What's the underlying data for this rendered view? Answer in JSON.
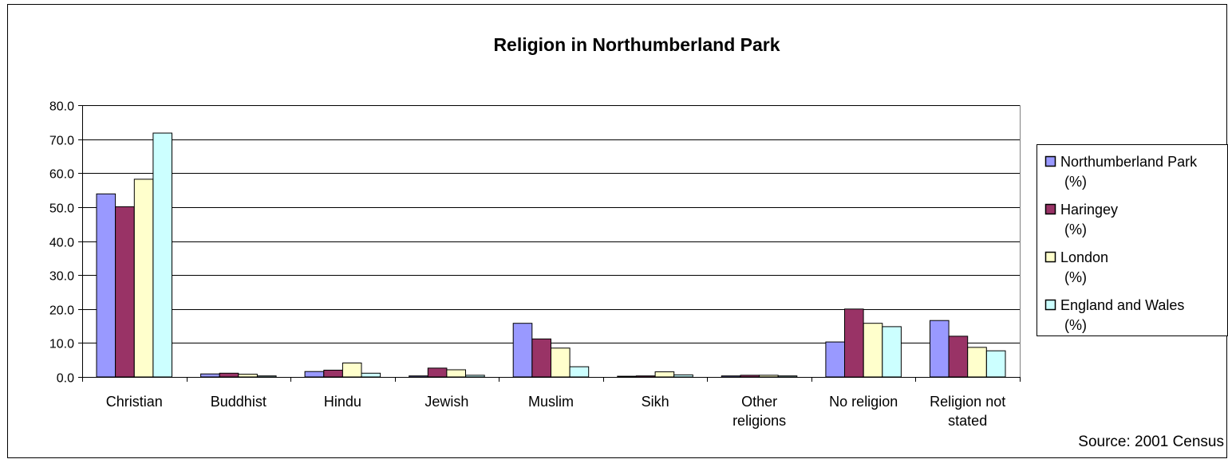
{
  "chart_data": {
    "type": "bar",
    "title": "Religion in Northumberland Park",
    "source_note": "Source: 2001 Census",
    "categories": [
      [
        "Christian"
      ],
      [
        "Buddhist"
      ],
      [
        "Hindu"
      ],
      [
        "Jewish"
      ],
      [
        "Muslim"
      ],
      [
        "Sikh"
      ],
      [
        "Other",
        "religions"
      ],
      [
        "No religion"
      ],
      [
        "Religion not",
        "stated"
      ]
    ],
    "ylim": [
      0,
      80
    ],
    "yticks": [
      "0.0",
      "10.0",
      "20.0",
      "30.0",
      "40.0",
      "50.0",
      "60.0",
      "70.0",
      "80.0"
    ],
    "grid": true,
    "legend_position": "right",
    "series": [
      {
        "name": [
          "Northumberland Park",
          "(%)"
        ],
        "color": "#9999FF",
        "values": [
          53.9,
          0.9,
          1.6,
          0.3,
          15.8,
          0.2,
          0.3,
          10.3,
          16.6
        ]
      },
      {
        "name": [
          "Haringey",
          "(%)"
        ],
        "color": "#993366",
        "values": [
          50.1,
          1.1,
          2.0,
          2.6,
          11.2,
          0.3,
          0.5,
          20.0,
          12.0
        ]
      },
      {
        "name": [
          "London",
          "(%)"
        ],
        "color": "#FFFFCC",
        "values": [
          58.2,
          0.8,
          4.1,
          2.1,
          8.5,
          1.5,
          0.5,
          15.8,
          8.7
        ]
      },
      {
        "name": [
          "England and Wales",
          "(%)"
        ],
        "color": "#CCFFFF",
        "values": [
          71.8,
          0.3,
          1.1,
          0.5,
          3.0,
          0.6,
          0.3,
          14.8,
          7.7
        ]
      }
    ]
  }
}
